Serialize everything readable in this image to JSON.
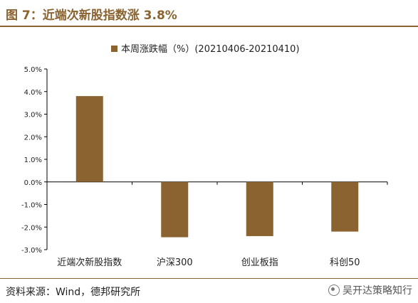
{
  "figure": {
    "title": "图 7：近端次新股指数涨 3.8%",
    "source": "资料来源：Wind，德邦研究所",
    "watermark": "吴开达策略知行"
  },
  "chart_data": {
    "type": "bar",
    "categories": [
      "近端次新股指数",
      "沪深300",
      "创业板指",
      "科创50"
    ],
    "series": [
      {
        "name": "本周涨跌幅（%）(20210406-20210410)",
        "values": [
          3.8,
          -2.45,
          -2.4,
          -2.2
        ],
        "color": "#8B6331"
      }
    ],
    "ylim": [
      -3.0,
      5.0
    ],
    "yticks": [
      5.0,
      4.0,
      3.0,
      2.0,
      1.0,
      0.0,
      -1.0,
      -2.0,
      -3.0
    ],
    "ytick_labels": [
      "5.0%",
      "4.0%",
      "3.0%",
      "2.0%",
      "1.0%",
      "0.0%",
      "-1.0%",
      "-2.0%",
      "-3.0%"
    ],
    "grid": false,
    "legend_position": "top-center",
    "xlabel": "",
    "ylabel": ""
  }
}
